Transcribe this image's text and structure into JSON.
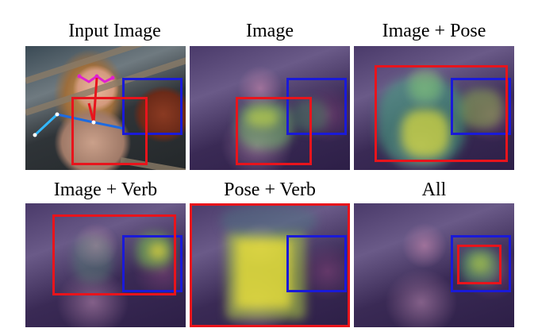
{
  "figure": {
    "panels": [
      {
        "id": "input",
        "title": "Input Image"
      },
      {
        "id": "image",
        "title": "Image"
      },
      {
        "id": "image-pose",
        "title": "Image + Pose"
      },
      {
        "id": "image-verb",
        "title": "Image + Verb"
      },
      {
        "id": "pose-verb",
        "title": "Pose + Verb"
      },
      {
        "id": "all",
        "title": "All"
      }
    ],
    "colors": {
      "object_box": "#1a1ad8",
      "predicted_box": "#e8141c",
      "pose_head": "#e020d0",
      "pose_arm_right": "#e8141c",
      "pose_arm_left": "#1e6be0",
      "pose_forearm": "#33b8ff",
      "heat_low": "#3a2a55",
      "heat_mid": "#2fa88a",
      "heat_high": "#f0e63a"
    }
  }
}
